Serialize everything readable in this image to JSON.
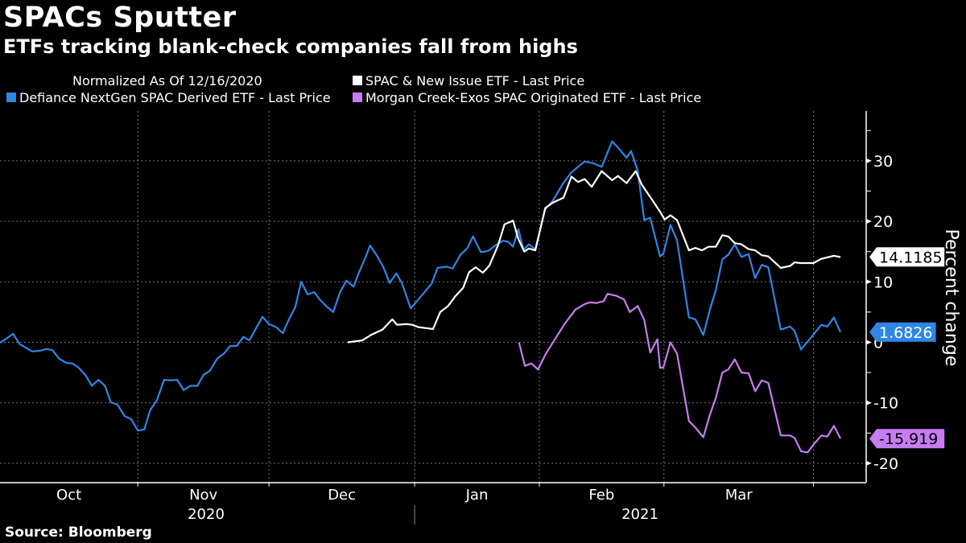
{
  "header": {
    "title": "SPACs Sputter",
    "subtitle": "ETFs tracking blank-check companies fall from highs"
  },
  "legend": {
    "note": "Normalized As Of 12/16/2020",
    "items": [
      {
        "label": "SPAC & New Issue ETF - Last Price",
        "color": "#ffffff"
      },
      {
        "label": "Defiance NextGen SPAC Derived ETF - Last Price",
        "color": "#2f86e6"
      },
      {
        "label": "Morgan Creek-Exos SPAC Originated ETF - Last Price",
        "color": "#c77cf2"
      }
    ]
  },
  "source": "Source: Bloomberg",
  "chart_data": {
    "type": "line",
    "title": "SPACs Sputter",
    "subtitle": "ETFs tracking blank-check companies fall from highs",
    "xlabel": "",
    "ylabel": "Percent change",
    "x_unit": "trading days since 2020-10-01",
    "xlim": [
      0,
      147
    ],
    "ylim": [
      -23,
      38
    ],
    "y_ticks": [
      -20,
      -10,
      0,
      10,
      20,
      30
    ],
    "y_tick_labels": [
      "-20",
      "-10",
      "0",
      "10",
      "20",
      "30"
    ],
    "y_minor_ticks": [
      -15,
      -5,
      5,
      15,
      25,
      35
    ],
    "x_month_ticks": [
      {
        "label": "Oct",
        "start": 0,
        "end": 21
      },
      {
        "label": "Nov",
        "start": 21,
        "end": 41
      },
      {
        "label": "Dec",
        "start": 41,
        "end": 63.2
      },
      {
        "label": "Jan",
        "start": 63.2,
        "end": 82.2
      },
      {
        "label": "Feb",
        "start": 82.2,
        "end": 101.2
      },
      {
        "label": "Mar",
        "start": 101.2,
        "end": 124
      }
    ],
    "x_year_labels": [
      {
        "label": "2020",
        "start": 0,
        "end": 63.2
      },
      {
        "label": "2021",
        "start": 63.2,
        "end": 147
      }
    ],
    "grid": true,
    "legend_position": "top",
    "series": [
      {
        "name": "Defiance NextGen SPAC Derived ETF - Last Price",
        "color": "#2f86e6",
        "last_value": "1.6826",
        "points": [
          [
            0,
            -0.1
          ],
          [
            2,
            1.4
          ],
          [
            3,
            -0.3
          ],
          [
            4.9,
            -1.5
          ],
          [
            6.1,
            -1.4
          ],
          [
            7.1,
            -1.1
          ],
          [
            8,
            -1.3
          ],
          [
            9,
            -2.7
          ],
          [
            10.1,
            -3.4
          ],
          [
            11,
            -3.5
          ],
          [
            11.9,
            -4.1
          ],
          [
            13,
            -5.4
          ],
          [
            14,
            -7.2
          ],
          [
            15,
            -6.2
          ],
          [
            16,
            -7.2
          ],
          [
            16.9,
            -9.9
          ],
          [
            17.9,
            -10.3
          ],
          [
            19,
            -12.2
          ],
          [
            20,
            -12.7
          ],
          [
            21,
            -14.6
          ],
          [
            22,
            -14.4
          ],
          [
            22.9,
            -11.2
          ],
          [
            23.9,
            -9.6
          ],
          [
            25,
            -6.2
          ],
          [
            26,
            -6.3
          ],
          [
            27,
            -6.2
          ],
          [
            28,
            -7.9
          ],
          [
            29,
            -7.2
          ],
          [
            30.1,
            -7.2
          ],
          [
            31,
            -5.4
          ],
          [
            32,
            -4.7
          ],
          [
            33.1,
            -2.7
          ],
          [
            34.1,
            -1.9
          ],
          [
            35.1,
            -0.6
          ],
          [
            36.1,
            -0.6
          ],
          [
            37.1,
            0.9
          ],
          [
            38,
            0.3
          ],
          [
            40,
            4.2
          ],
          [
            41,
            3.0
          ],
          [
            42.1,
            2.5
          ],
          [
            43.1,
            1.5
          ],
          [
            44,
            3.7
          ],
          [
            45,
            5.8
          ],
          [
            45.9,
            10.0
          ],
          [
            46.9,
            7.9
          ],
          [
            47.9,
            8.3
          ],
          [
            48.8,
            7.0
          ],
          [
            49.8,
            5.9
          ],
          [
            50.8,
            5.0
          ],
          [
            51.8,
            8.2
          ],
          [
            52.8,
            10.2
          ],
          [
            53.9,
            9.2
          ],
          [
            54.7,
            11.5
          ],
          [
            55.7,
            14.0
          ],
          [
            56.4,
            16.0
          ],
          [
            57.3,
            14.6
          ],
          [
            58.4,
            12.5
          ],
          [
            59.4,
            9.8
          ],
          [
            60.4,
            11.4
          ],
          [
            61.3,
            9.7
          ],
          [
            62.6,
            5.6
          ],
          [
            64,
            7.4
          ],
          [
            65.8,
            9.7
          ],
          [
            66.7,
            12.3
          ],
          [
            68.1,
            12.5
          ],
          [
            69,
            12.2
          ],
          [
            70.2,
            14.5
          ],
          [
            71.2,
            15.5
          ],
          [
            72.1,
            17.5
          ],
          [
            73.3,
            14.9
          ],
          [
            74.4,
            15.1
          ],
          [
            75.5,
            16.0
          ],
          [
            76.7,
            16.8
          ],
          [
            77.5,
            16.6
          ],
          [
            78.2,
            15.8
          ],
          [
            79,
            18.7
          ],
          [
            79.8,
            15.3
          ],
          [
            80.6,
            16.2
          ],
          [
            81.6,
            15.4
          ],
          [
            83.1,
            22.0
          ],
          [
            84.2,
            23.3
          ],
          [
            85.9,
            26.4
          ],
          [
            87.1,
            28.1
          ],
          [
            89.1,
            29.9
          ],
          [
            90.4,
            29.6
          ],
          [
            91.7,
            29.0
          ],
          [
            93.3,
            33.2
          ],
          [
            94.2,
            32.2
          ],
          [
            95.5,
            30.5
          ],
          [
            96.2,
            31.6
          ],
          [
            97.2,
            28.4
          ],
          [
            98.2,
            20.2
          ],
          [
            99.1,
            20.6
          ],
          [
            100.6,
            14.2
          ],
          [
            101.1,
            14.6
          ],
          [
            102.2,
            19.4
          ],
          [
            103.2,
            16.8
          ],
          [
            105,
            4.1
          ],
          [
            106,
            3.8
          ],
          [
            107.2,
            1.2
          ],
          [
            108.2,
            5.4
          ],
          [
            109.1,
            8.6
          ],
          [
            110.1,
            13.7
          ],
          [
            111,
            14.5
          ],
          [
            112,
            16.2
          ],
          [
            113,
            14.1
          ],
          [
            114.1,
            14.6
          ],
          [
            115.1,
            10.6
          ],
          [
            116.1,
            12.8
          ],
          [
            117.1,
            12.4
          ],
          [
            119,
            2.1
          ],
          [
            120.4,
            2.6
          ],
          [
            121.1,
            1.9
          ],
          [
            122.1,
            -1.2
          ],
          [
            123.1,
            0.1
          ],
          [
            124,
            1.3
          ],
          [
            125.2,
            2.9
          ],
          [
            126.1,
            2.6
          ],
          [
            127.1,
            4.1
          ],
          [
            128.1,
            1.7
          ]
        ]
      },
      {
        "name": "SPAC & New Issue ETF - Last Price",
        "color": "#ffffff",
        "last_value": "14.1185",
        "points": [
          [
            53,
            0
          ],
          [
            55.2,
            0.3
          ],
          [
            56.7,
            1.3
          ],
          [
            58.3,
            2.1
          ],
          [
            59.8,
            3.8
          ],
          [
            60.5,
            2.9
          ],
          [
            62,
            3.0
          ],
          [
            62.8,
            2.9
          ],
          [
            63.8,
            2.5
          ],
          [
            66,
            2.2
          ],
          [
            67.1,
            5.0
          ],
          [
            68.3,
            6.0
          ],
          [
            69.4,
            7.6
          ],
          [
            70.6,
            9.0
          ],
          [
            71.5,
            11.6
          ],
          [
            72.5,
            12.4
          ],
          [
            73.6,
            11.5
          ],
          [
            74.6,
            12.7
          ],
          [
            75.9,
            16.0
          ],
          [
            76.9,
            19.5
          ],
          [
            78.2,
            20.1
          ],
          [
            79,
            17.1
          ],
          [
            79.9,
            15.0
          ],
          [
            80.6,
            15.5
          ],
          [
            81.6,
            15.2
          ],
          [
            83.1,
            22.2
          ],
          [
            84.3,
            23.1
          ],
          [
            85.9,
            23.9
          ],
          [
            87.1,
            27.4
          ],
          [
            88.1,
            26.5
          ],
          [
            89.1,
            27.0
          ],
          [
            90.2,
            25.7
          ],
          [
            91.7,
            28.3
          ],
          [
            93.3,
            26.8
          ],
          [
            94.2,
            27.5
          ],
          [
            95.5,
            26.3
          ],
          [
            96.9,
            28.3
          ],
          [
            97.8,
            26.1
          ],
          [
            99.3,
            23.7
          ],
          [
            100.6,
            21.6
          ],
          [
            101.3,
            20.3
          ],
          [
            102.2,
            21.0
          ],
          [
            103.2,
            20.2
          ],
          [
            105,
            15.2
          ],
          [
            106,
            15.6
          ],
          [
            107,
            15.2
          ],
          [
            108,
            15.8
          ],
          [
            109.1,
            15.8
          ],
          [
            110.1,
            17.7
          ],
          [
            111,
            17.5
          ],
          [
            112,
            16.4
          ],
          [
            113,
            16.2
          ],
          [
            114.1,
            15.4
          ],
          [
            115.1,
            15.2
          ],
          [
            116.1,
            14.4
          ],
          [
            117.1,
            14.2
          ],
          [
            119,
            12.3
          ],
          [
            120.4,
            12.6
          ],
          [
            121.1,
            13.2
          ],
          [
            122.1,
            13.1
          ],
          [
            124,
            13.1
          ],
          [
            125.2,
            13.8
          ],
          [
            127.1,
            14.3
          ],
          [
            128.1,
            14.1
          ]
        ]
      },
      {
        "name": "Morgan Creek-Exos SPAC Originated ETF - Last Price",
        "color": "#c77cf2",
        "last_value": "-15.919",
        "points": [
          [
            79.1,
            0
          ],
          [
            80,
            -3.9
          ],
          [
            81,
            -3.5
          ],
          [
            82,
            -4.5
          ],
          [
            83.2,
            -1.9
          ],
          [
            84.7,
            0.7
          ],
          [
            86.1,
            3.1
          ],
          [
            87.7,
            5.4
          ],
          [
            89.1,
            6.3
          ],
          [
            89.9,
            6.6
          ],
          [
            91,
            6.5
          ],
          [
            92,
            6.8
          ],
          [
            92.6,
            8.0
          ],
          [
            93.9,
            7.7
          ],
          [
            95.1,
            7.1
          ],
          [
            96,
            5.0
          ],
          [
            97.2,
            6.0
          ],
          [
            98.2,
            3.7
          ],
          [
            99.1,
            -1.7
          ],
          [
            100.2,
            0.5
          ],
          [
            100.6,
            -4.2
          ],
          [
            101.1,
            -4.2
          ],
          [
            102.2,
            0
          ],
          [
            103.2,
            -1.9
          ],
          [
            105,
            -13
          ],
          [
            106,
            -14.1
          ],
          [
            107.2,
            -15.7
          ],
          [
            108.2,
            -12
          ],
          [
            109.1,
            -9.2
          ],
          [
            110.1,
            -5
          ],
          [
            111,
            -4.5
          ],
          [
            112,
            -2.8
          ],
          [
            113,
            -5
          ],
          [
            114.1,
            -5.1
          ],
          [
            115.1,
            -8.1
          ],
          [
            116.1,
            -6.3
          ],
          [
            117.1,
            -6.7
          ],
          [
            119,
            -15.4
          ],
          [
            120.4,
            -15.4
          ],
          [
            121.1,
            -15.8
          ],
          [
            122.1,
            -18.0
          ],
          [
            123.1,
            -18.2
          ],
          [
            124,
            -16.9
          ],
          [
            125.2,
            -15.4
          ],
          [
            126.1,
            -15.6
          ],
          [
            127.1,
            -13.8
          ],
          [
            128.1,
            -15.9
          ]
        ]
      }
    ]
  }
}
